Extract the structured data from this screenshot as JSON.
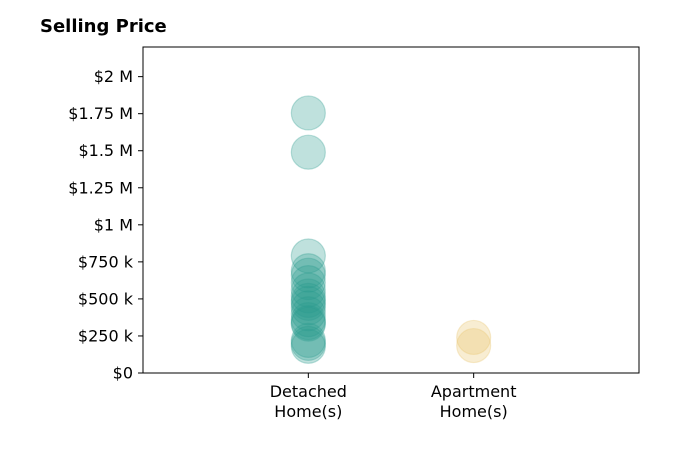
{
  "chart_data": {
    "type": "scatter",
    "title": "Selling Price",
    "xlabel": "",
    "ylabel": "",
    "categories": [
      "Detached\nHome(s)",
      "Apartment\nHome(s)"
    ],
    "ylim": [
      0,
      2200000
    ],
    "xlim": [
      -1,
      2
    ],
    "yticks": [
      0,
      250000,
      500000,
      750000,
      1000000,
      1250000,
      1500000,
      1750000,
      2000000
    ],
    "ytick_labels": [
      "$0",
      "$250 k",
      "$500 k",
      "$750 k",
      "$1 M",
      "$1.25 M",
      "$1.5 M",
      "$1.75 M",
      "$2 M"
    ],
    "grid": false,
    "legend": "none",
    "series": [
      {
        "category": "Detached\nHome(s)",
        "color": "#2a9d8f",
        "opacity": 0.3,
        "values": [
          1755000,
          1490000,
          790000,
          690000,
          660000,
          610000,
          560000,
          520000,
          490000,
          470000,
          440000,
          400000,
          360000,
          340000,
          330000,
          220000,
          200000,
          180000
        ]
      },
      {
        "category": "Apartment\nHome(s)",
        "color": "#e9c46a",
        "opacity": 0.3,
        "values": [
          240000,
          185000
        ]
      }
    ]
  }
}
